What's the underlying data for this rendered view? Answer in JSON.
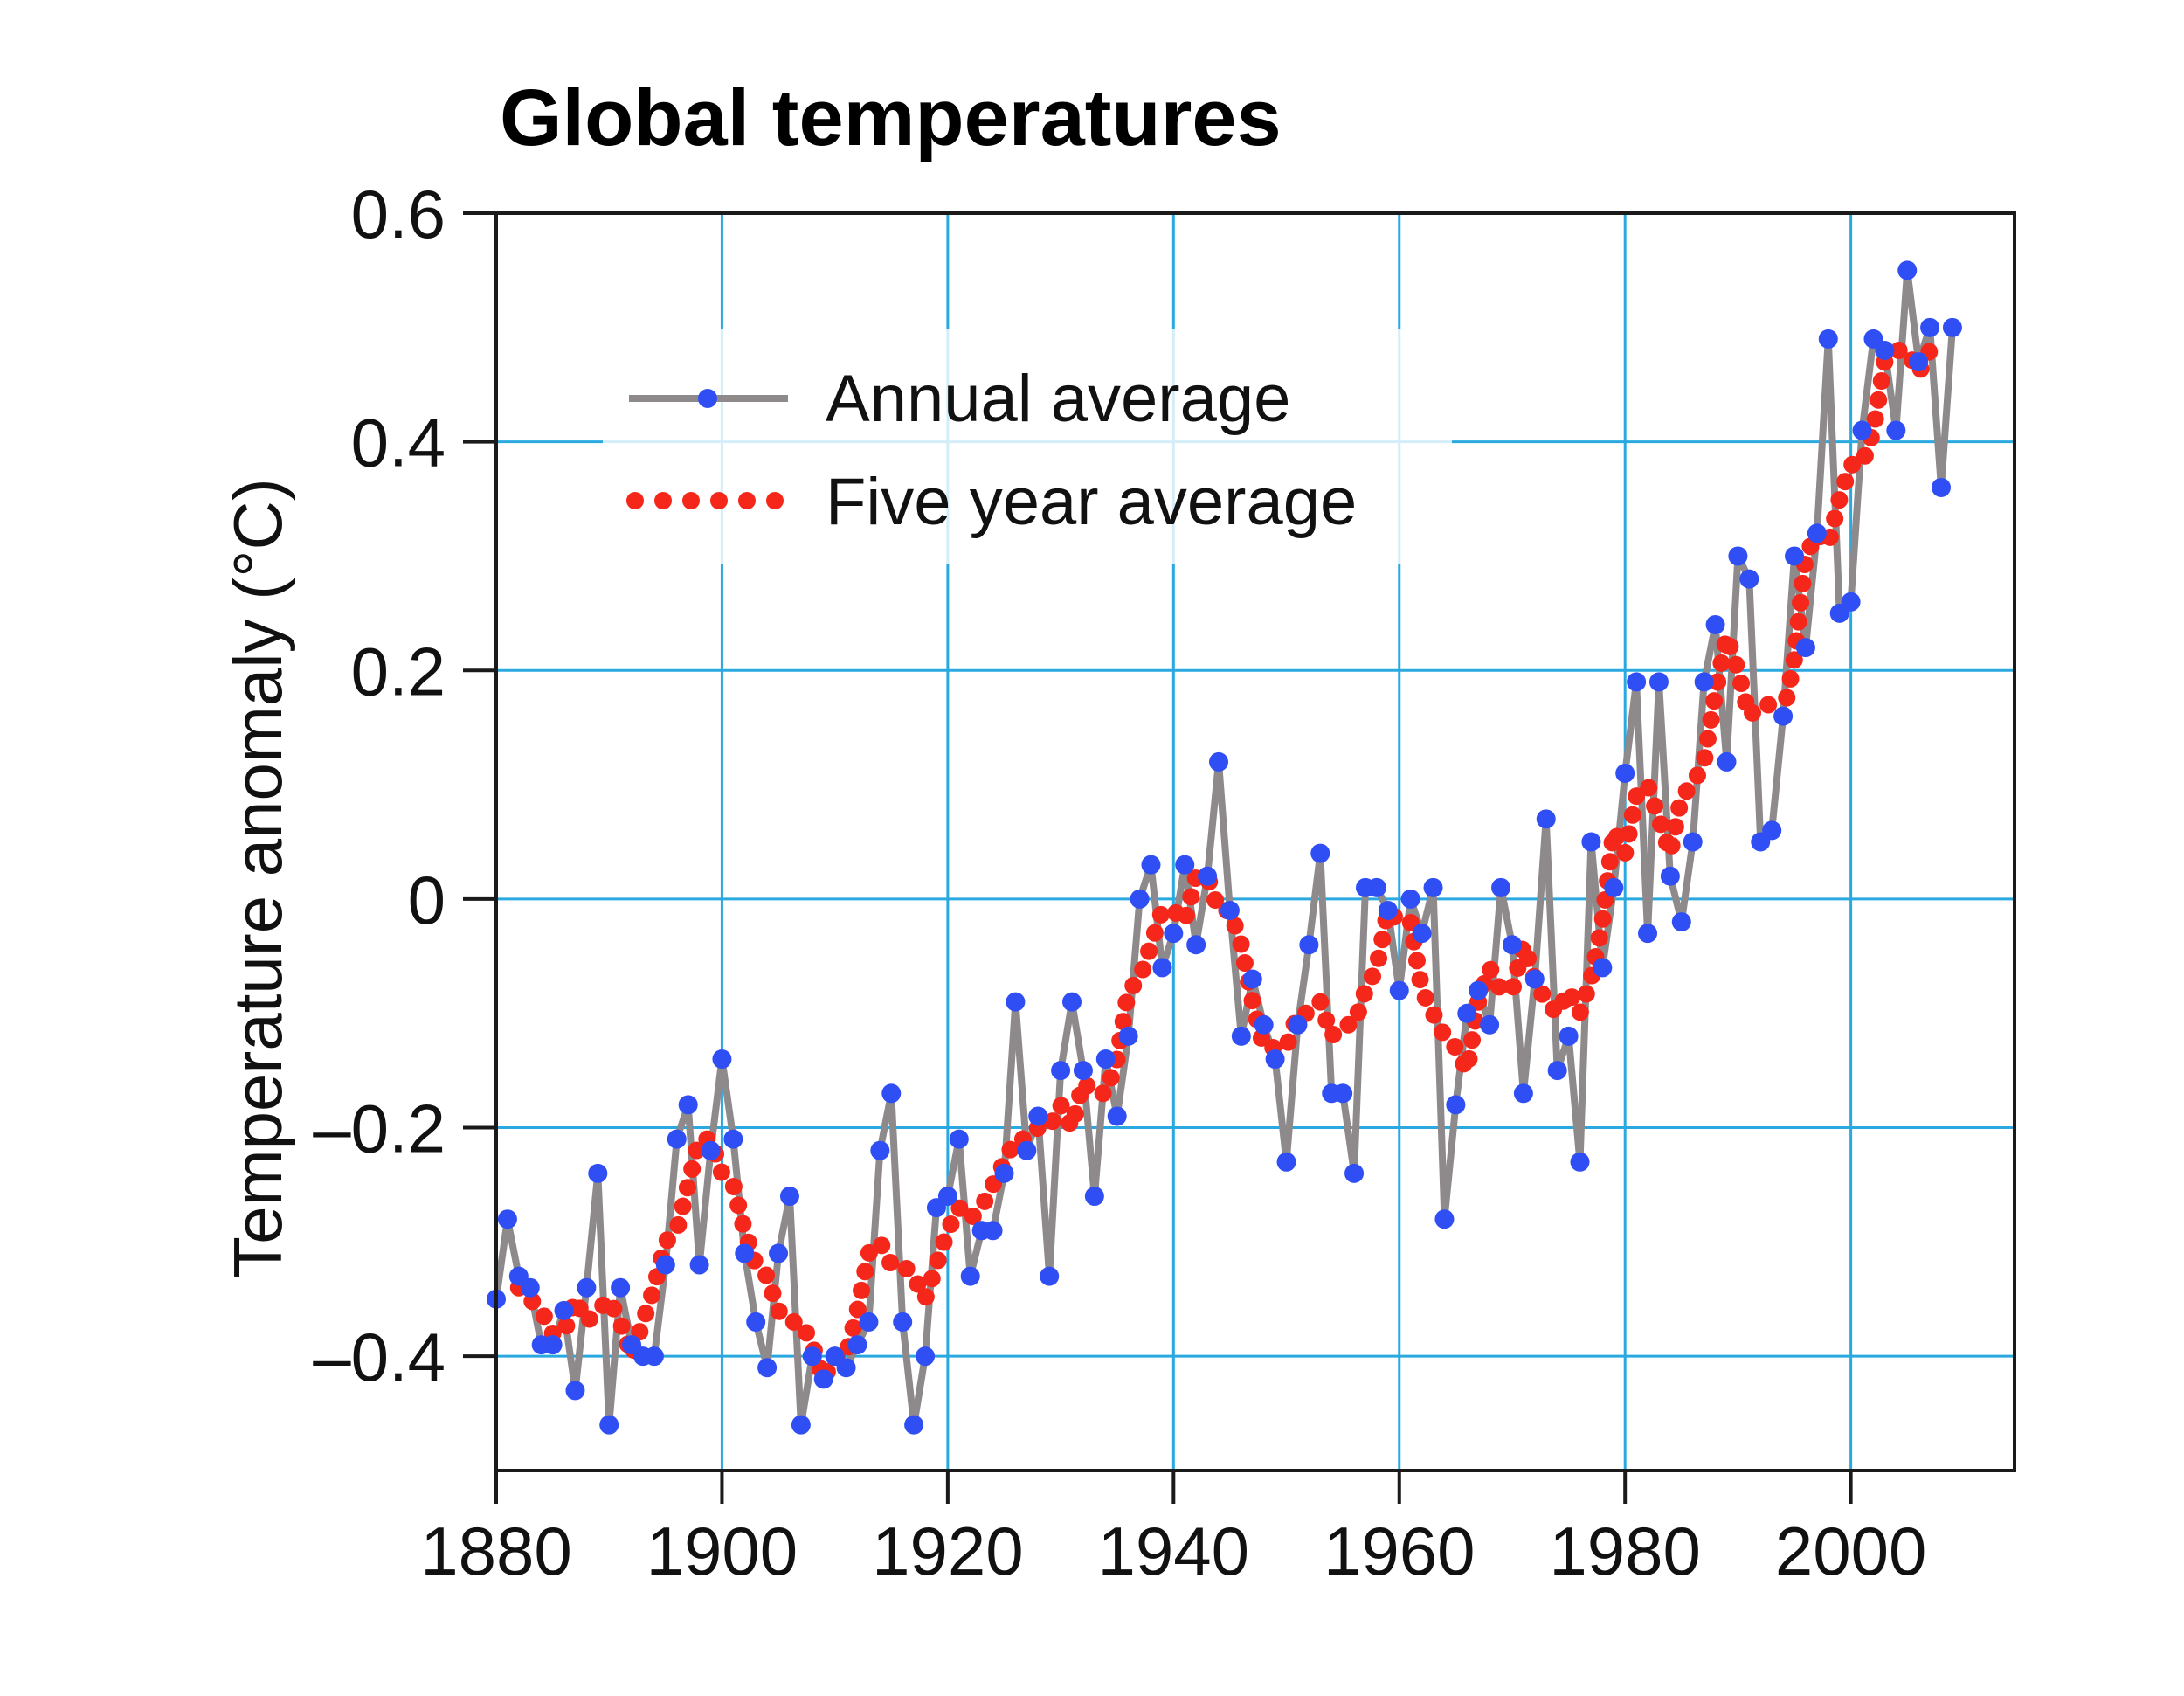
{
  "chart_data": {
    "type": "line",
    "title": "Global temperatures",
    "xlabel": "",
    "ylabel": "Temperature anomaly (°C)",
    "xlim": [
      1880,
      2014.5
    ],
    "ylim": [
      -0.5,
      0.6
    ],
    "x_ticks": [
      1880,
      1900,
      1920,
      1940,
      1960,
      1980,
      2000
    ],
    "x_tick_labels": [
      "1880",
      "1900",
      "1920",
      "1940",
      "1960",
      "1980",
      "2000"
    ],
    "y_ticks": [
      0.6,
      0.4,
      0.2,
      0,
      -0.2,
      -0.4
    ],
    "y_tick_labels": [
      "0.6",
      "0.4",
      "0.2",
      "0",
      "–0.2",
      "–0.4"
    ],
    "grid": true,
    "legend_position": "top-left",
    "colors": {
      "grid": "#29a9e0",
      "annual_line": "#8e8a8c",
      "annual_marker": "#2f4ff5",
      "five_year": "#f5271b",
      "axis": "#1a1a1a"
    },
    "series": [
      {
        "name": "Annual average",
        "style": "line-with-markers",
        "x": [
          1880,
          1881,
          1882,
          1883,
          1884,
          1885,
          1886,
          1887,
          1888,
          1889,
          1890,
          1891,
          1892,
          1893,
          1894,
          1895,
          1896,
          1897,
          1898,
          1899,
          1900,
          1901,
          1902,
          1903,
          1904,
          1905,
          1906,
          1907,
          1908,
          1909,
          1910,
          1911,
          1912,
          1913,
          1914,
          1915,
          1916,
          1917,
          1918,
          1919,
          1920,
          1921,
          1922,
          1923,
          1924,
          1925,
          1926,
          1927,
          1928,
          1929,
          1930,
          1931,
          1932,
          1933,
          1934,
          1935,
          1936,
          1937,
          1938,
          1939,
          1940,
          1941,
          1942,
          1943,
          1944,
          1945,
          1946,
          1947,
          1948,
          1949,
          1950,
          1951,
          1952,
          1953,
          1954,
          1955,
          1956,
          1957,
          1958,
          1959,
          1960,
          1961,
          1962,
          1963,
          1964,
          1965,
          1966,
          1967,
          1968,
          1969,
          1970,
          1971,
          1972,
          1973,
          1974,
          1975,
          1976,
          1977,
          1978,
          1979,
          1980,
          1981,
          1982,
          1983,
          1984,
          1985,
          1986,
          1987,
          1988,
          1989,
          1990,
          1991,
          1992,
          1993,
          1994,
          1995,
          1996,
          1997,
          1998,
          1999,
          2000,
          2001,
          2002,
          2003,
          2004,
          2005,
          2006,
          2007,
          2008,
          2009
        ],
        "values": [
          -0.35,
          -0.28,
          -0.33,
          -0.34,
          -0.39,
          -0.39,
          -0.36,
          -0.43,
          -0.34,
          -0.24,
          -0.46,
          -0.34,
          -0.39,
          -0.4,
          -0.4,
          -0.32,
          -0.21,
          -0.18,
          -0.32,
          -0.22,
          -0.14,
          -0.21,
          -0.31,
          -0.37,
          -0.41,
          -0.31,
          -0.26,
          -0.46,
          -0.4,
          -0.42,
          -0.4,
          -0.41,
          -0.39,
          -0.37,
          -0.22,
          -0.17,
          -0.37,
          -0.46,
          -0.4,
          -0.27,
          -0.26,
          -0.21,
          -0.33,
          -0.29,
          -0.29,
          -0.24,
          -0.09,
          -0.22,
          -0.19,
          -0.33,
          -0.15,
          -0.09,
          -0.15,
          -0.26,
          -0.14,
          -0.19,
          -0.12,
          0.0,
          0.03,
          -0.06,
          -0.03,
          0.03,
          -0.04,
          0.02,
          0.12,
          -0.01,
          -0.12,
          -0.07,
          -0.11,
          -0.14,
          -0.23,
          -0.11,
          -0.04,
          0.04,
          -0.17,
          -0.17,
          -0.24,
          0.01,
          0.01,
          -0.01,
          -0.08,
          0.0,
          -0.03,
          0.01,
          -0.28,
          -0.18,
          -0.1,
          -0.08,
          -0.11,
          0.01,
          -0.04,
          -0.17,
          -0.07,
          0.07,
          -0.15,
          -0.12,
          -0.23,
          0.05,
          -0.06,
          0.01,
          0.11,
          0.19,
          -0.03,
          0.19,
          0.02,
          -0.02,
          0.05,
          0.19,
          0.24,
          0.12,
          0.3,
          0.28,
          0.05,
          0.06,
          0.16,
          0.3,
          0.22,
          0.32,
          0.49,
          0.25,
          0.26,
          0.41,
          0.49,
          0.48,
          0.41,
          0.55,
          0.47,
          0.5,
          0.36,
          0.5
        ]
      },
      {
        "name": "Five year average",
        "style": "dotted-line",
        "x": [
          1882,
          1883,
          1884,
          1885,
          1886,
          1887,
          1888,
          1889,
          1890,
          1891,
          1892,
          1893,
          1894,
          1895,
          1896,
          1897,
          1898,
          1899,
          1900,
          1901,
          1902,
          1903,
          1904,
          1905,
          1906,
          1907,
          1908,
          1909,
          1910,
          1911,
          1912,
          1913,
          1914,
          1915,
          1916,
          1917,
          1918,
          1919,
          1920,
          1921,
          1922,
          1923,
          1924,
          1925,
          1926,
          1927,
          1928,
          1929,
          1930,
          1931,
          1932,
          1933,
          1934,
          1935,
          1936,
          1937,
          1938,
          1939,
          1940,
          1941,
          1942,
          1943,
          1944,
          1945,
          1946,
          1947,
          1948,
          1949,
          1950,
          1951,
          1952,
          1953,
          1954,
          1955,
          1956,
          1957,
          1958,
          1959,
          1960,
          1961,
          1962,
          1963,
          1964,
          1965,
          1966,
          1967,
          1968,
          1969,
          1970,
          1971,
          1972,
          1973,
          1974,
          1975,
          1976,
          1977,
          1978,
          1979,
          1980,
          1981,
          1982,
          1983,
          1984,
          1985,
          1986,
          1987,
          1988,
          1989,
          1990,
          1991,
          1992,
          1993,
          1994,
          1995,
          1996,
          1997,
          1998,
          1999,
          2000,
          2001,
          2002,
          2003,
          2004,
          2005,
          2006,
          2007
        ],
        "values": [
          -0.34,
          -0.35,
          -0.36,
          -0.38,
          -0.38,
          -0.35,
          -0.37,
          -0.36,
          -0.35,
          -0.37,
          -0.4,
          -0.37,
          -0.34,
          -0.3,
          -0.29,
          -0.25,
          -0.21,
          -0.21,
          -0.24,
          -0.25,
          -0.29,
          -0.32,
          -0.33,
          -0.36,
          -0.37,
          -0.37,
          -0.39,
          -0.42,
          -0.4,
          -0.4,
          -0.36,
          -0.31,
          -0.3,
          -0.32,
          -0.32,
          -0.33,
          -0.35,
          -0.32,
          -0.29,
          -0.27,
          -0.28,
          -0.27,
          -0.25,
          -0.23,
          -0.21,
          -0.21,
          -0.2,
          -0.2,
          -0.18,
          -0.2,
          -0.16,
          -0.17,
          -0.17,
          -0.14,
          -0.08,
          -0.07,
          -0.04,
          -0.01,
          -0.01,
          -0.02,
          0.02,
          0.02,
          -0.01,
          -0.01,
          -0.04,
          -0.09,
          -0.13,
          -0.13,
          -0.13,
          -0.1,
          -0.1,
          -0.09,
          -0.12,
          -0.11,
          -0.11,
          -0.08,
          -0.06,
          -0.01,
          -0.02,
          -0.02,
          -0.08,
          -0.1,
          -0.12,
          -0.13,
          -0.15,
          -0.09,
          -0.06,
          -0.08,
          -0.08,
          -0.04,
          -0.07,
          -0.09,
          -0.1,
          -0.08,
          -0.1,
          -0.07,
          -0.02,
          0.06,
          0.04,
          0.09,
          0.1,
          0.07,
          0.04,
          0.09,
          0.1,
          0.12,
          0.18,
          0.23,
          0.2,
          0.16,
          0.17,
          0.17,
          0.16,
          0.21,
          0.3,
          0.32,
          0.31,
          0.35,
          0.38,
          0.38,
          0.41,
          0.47,
          0.48,
          0.48,
          0.46,
          0.48
        ]
      }
    ]
  }
}
